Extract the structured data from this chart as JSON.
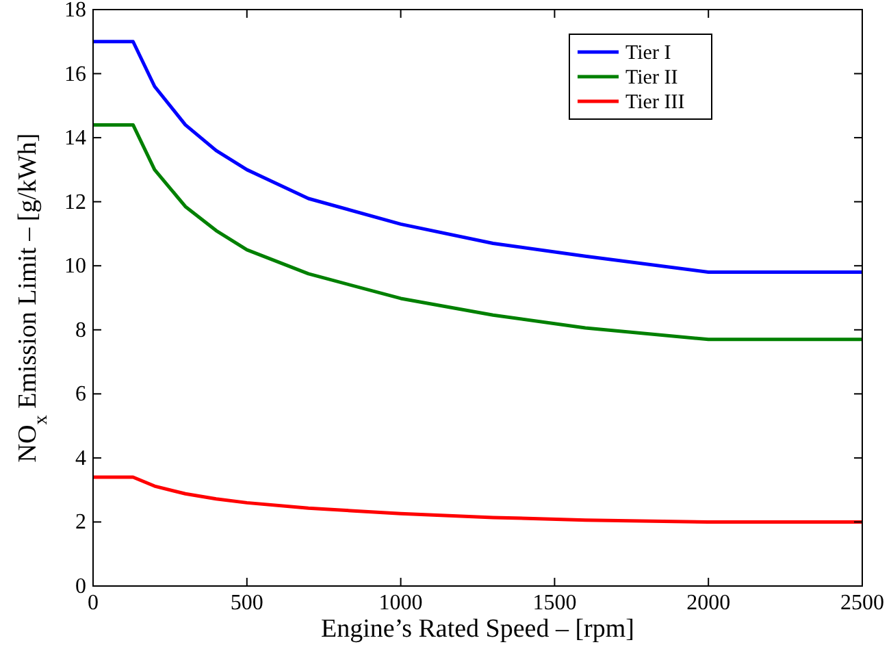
{
  "chart_data": {
    "type": "line",
    "xlabel": "Engine’s Rated Speed – [rpm]",
    "ylabel": "NO$_{x}$ Emission Limit – [g/kWh]",
    "x": [
      0,
      130,
      200,
      300,
      400,
      500,
      700,
      1000,
      1300,
      1600,
      2000,
      2500
    ],
    "series": [
      {
        "name": "Tier I",
        "color": "#0000ff",
        "values": [
          17,
          17,
          15.6,
          14.4,
          13.6,
          13,
          12.1,
          11.3,
          10.7,
          10.3,
          9.8,
          9.8
        ]
      },
      {
        "name": "Tier II",
        "color": "#008000",
        "values": [
          14.4,
          14.4,
          13,
          11.85,
          11.1,
          10.5,
          9.75,
          8.98,
          8.46,
          8.06,
          7.7,
          7.7
        ]
      },
      {
        "name": "Tier III",
        "color": "#ff0000",
        "values": [
          3.4,
          3.4,
          3.12,
          2.88,
          2.72,
          2.6,
          2.43,
          2.26,
          2.14,
          2.06,
          2,
          2
        ]
      }
    ],
    "xlim": [
      0,
      2500
    ],
    "xticks": [
      0,
      500,
      1000,
      1500,
      2000,
      2500
    ],
    "ylim": [
      0,
      18
    ],
    "yticks": [
      0,
      2,
      4,
      6,
      8,
      10,
      12,
      14,
      16,
      18
    ],
    "grid": false,
    "legend": "top right",
    "marker": "none",
    "line_style": "solid"
  }
}
